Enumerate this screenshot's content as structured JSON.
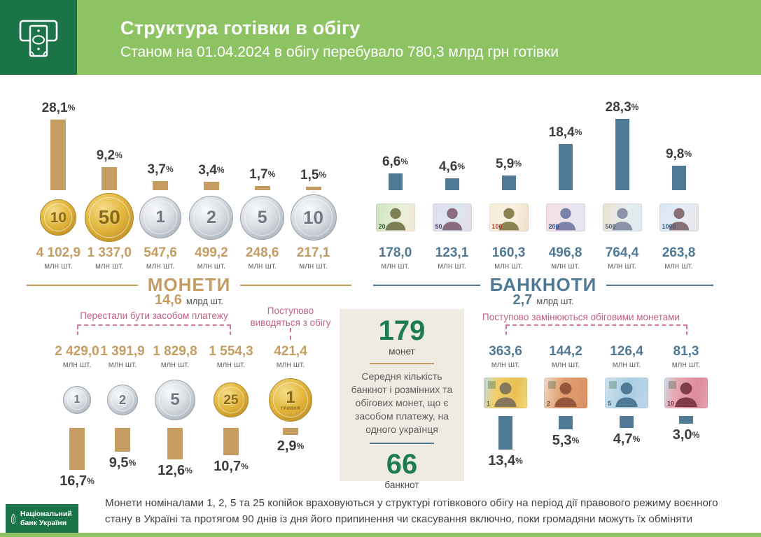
{
  "header": {
    "title": "Структура готівки в обігу",
    "subtitle": "Станом на 01.04.2024 в обігу перебувало 780,3 млрд грн готівки"
  },
  "units": {
    "mln": "млн шт.",
    "mlrd": "млрд шт.",
    "percent": "%"
  },
  "colors": {
    "header_green": "#8dc363",
    "brand_dark_green": "#1a7448",
    "coins_gold": "#c59d63",
    "banknotes_blue": "#4f7995",
    "annotation_pink": "#c2627e",
    "center_green": "#1e7d4f",
    "center_bg": "#efeae2"
  },
  "coins_top": {
    "section_label": "МОНЕТИ",
    "total": "14,6",
    "items": [
      {
        "denom": "10",
        "kind": "gold",
        "pct": "28,1",
        "count": "4 102,9"
      },
      {
        "denom": "50",
        "kind": "gold",
        "pct": "9,2",
        "count": "1 337,0"
      },
      {
        "denom": "1",
        "kind": "silver",
        "pct": "3,7",
        "count": "547,6"
      },
      {
        "denom": "2",
        "kind": "silver",
        "pct": "3,4",
        "count": "499,2"
      },
      {
        "denom": "5",
        "kind": "silver",
        "pct": "1,7",
        "count": "248,6"
      },
      {
        "denom": "10",
        "kind": "silver",
        "pct": "1,5",
        "count": "217,1"
      }
    ]
  },
  "banknotes_top": {
    "section_label": "БАНКНОТИ",
    "total": "2,7",
    "items": [
      {
        "denom": "20",
        "pct": "6,6",
        "count": "178,0"
      },
      {
        "denom": "50",
        "pct": "4,6",
        "count": "123,1"
      },
      {
        "denom": "100",
        "pct": "5,9",
        "count": "160,3"
      },
      {
        "denom": "200",
        "pct": "18,4",
        "count": "496,8"
      },
      {
        "denom": "500",
        "pct": "28,3",
        "count": "764,4"
      },
      {
        "denom": "1000",
        "pct": "9,8",
        "count": "263,8"
      }
    ]
  },
  "coins_bottom": {
    "annotation_left": "Перестали бути засобом платежу",
    "annotation_right": "Поступово виводяться з обігу",
    "items": [
      {
        "denom": "1",
        "kind": "silver",
        "count": "2 429,0",
        "pct": "16,7"
      },
      {
        "denom": "2",
        "kind": "silver",
        "count": "1 391,9",
        "pct": "9,5"
      },
      {
        "denom": "5",
        "kind": "silver",
        "count": "1 829,8",
        "pct": "12,6"
      },
      {
        "denom": "25",
        "kind": "gold",
        "count": "1 554,3",
        "pct": "10,7"
      },
      {
        "denom": "1",
        "kind": "gold",
        "label": "ГРИВНЯ",
        "count": "421,4",
        "pct": "2,9"
      }
    ]
  },
  "banknotes_bottom": {
    "annotation": "Поступово замінюються обіговими монетами",
    "items": [
      {
        "denom": "1",
        "count": "363,6",
        "pct": "13,4"
      },
      {
        "denom": "2",
        "count": "144,2",
        "pct": "5,3"
      },
      {
        "denom": "5",
        "count": "126,4",
        "pct": "4,7"
      },
      {
        "denom": "10",
        "count": "81,3",
        "pct": "3,0"
      }
    ]
  },
  "center_box": {
    "coins_value": "179",
    "coins_label": "монет",
    "text": "Середня кількість банкнот і розмінних та обігових монет, що є засобом платежу, на одного українця",
    "banknotes_value": "66",
    "banknotes_label": "банкнот"
  },
  "footer": {
    "note": "Монети номіналами 1, 2, 5 та 25 копійок враховуються у структурі готівкового обігу на період дії правового режиму воєнного стану в Україні та протягом 90 днів із дня його припинення чи скасування включно, поки громадяни можуть їх обміняти",
    "logo_text": "Національний банк України"
  },
  "chart_data": [
    {
      "type": "bar",
      "title": "МОНЕТИ — частка в обігу та кількість",
      "categories": [
        "10 коп",
        "50 коп",
        "1 грн",
        "2 грн",
        "5 грн",
        "10 грн"
      ],
      "series": [
        {
          "name": "частка, %",
          "values": [
            28.1,
            9.2,
            3.7,
            3.4,
            1.7,
            1.5
          ]
        },
        {
          "name": "кількість, млн шт.",
          "values": [
            4102.9,
            1337.0,
            547.6,
            499.2,
            248.6,
            217.1
          ]
        }
      ],
      "total": "14,6 млрд шт.",
      "bar_color": "#c59d63"
    },
    {
      "type": "bar",
      "title": "БАНКНОТИ — частка в обігу та кількість",
      "categories": [
        "20 грн",
        "50 грн",
        "100 грн",
        "200 грн",
        "500 грн",
        "1000 грн"
      ],
      "series": [
        {
          "name": "частка, %",
          "values": [
            6.6,
            4.6,
            5.9,
            18.4,
            28.3,
            9.8
          ]
        },
        {
          "name": "кількість, млн шт.",
          "values": [
            178.0,
            123.1,
            160.3,
            496.8,
            764.4,
            263.8
          ]
        }
      ],
      "total": "2,7 млрд шт.",
      "bar_color": "#4f7995"
    },
    {
      "type": "bar",
      "title": "Монети, що перестали бути засобом платежу / виводяться з обігу",
      "categories": [
        "1 коп",
        "2 коп",
        "5 коп",
        "25 коп",
        "1 гривня"
      ],
      "series": [
        {
          "name": "частка, %",
          "values": [
            16.7,
            9.5,
            12.6,
            10.7,
            2.9
          ]
        },
        {
          "name": "кількість, млн шт.",
          "values": [
            2429.0,
            1391.9,
            1829.8,
            1554.3,
            421.4
          ]
        }
      ],
      "bar_color": "#c59d63"
    },
    {
      "type": "bar",
      "title": "Банкноти, що поступово замінюються обіговими монетами",
      "categories": [
        "1 грн",
        "2 грн",
        "5 грн",
        "10 грн"
      ],
      "series": [
        {
          "name": "частка, %",
          "values": [
            13.4,
            5.3,
            4.7,
            3.0
          ]
        },
        {
          "name": "кількість, млн шт.",
          "values": [
            363.6,
            144.2,
            126.4,
            81.3
          ]
        }
      ],
      "bar_color": "#4f7995"
    }
  ]
}
